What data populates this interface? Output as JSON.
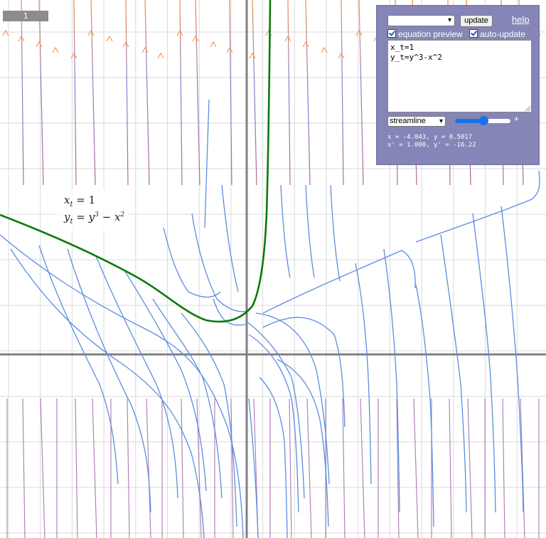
{
  "tab": {
    "label": "1"
  },
  "equation_label": {
    "line1": "x",
    "line1_sub": "t",
    "line1_rest": " = 1",
    "line2": "y",
    "line2_sub": "t",
    "line2_mid": " = y",
    "line2_sup1": "3",
    "line2_minus": " − x",
    "line2_sup2": "2"
  },
  "panel": {
    "preset_value": "",
    "update_label": "update",
    "help_label": "help",
    "equation_preview_label": "equation preview",
    "equation_preview_checked": true,
    "auto_update_label": "auto-update",
    "auto_update_checked": true,
    "editor_lines": [
      "x_t=1",
      "y_t=y^3-x^2"
    ],
    "mode_value": "streamline",
    "slider_level": 0.5,
    "plus_label": "+",
    "readout_pos": "x = -4.043, y = 0.5017",
    "readout_deriv": "x' = 1.000, y' = -16.22"
  },
  "colors": {
    "axis": "#808080",
    "grid": "#d9d9d9",
    "stream_blue": "#5b8de0",
    "stream_orange": "#ef8a4a",
    "solution": "#0a7a0a",
    "panel_bg": "#8585b8"
  },
  "icons": {
    "dropdown": "chevron-down-icon",
    "checkbox": "checkmark-icon"
  }
}
